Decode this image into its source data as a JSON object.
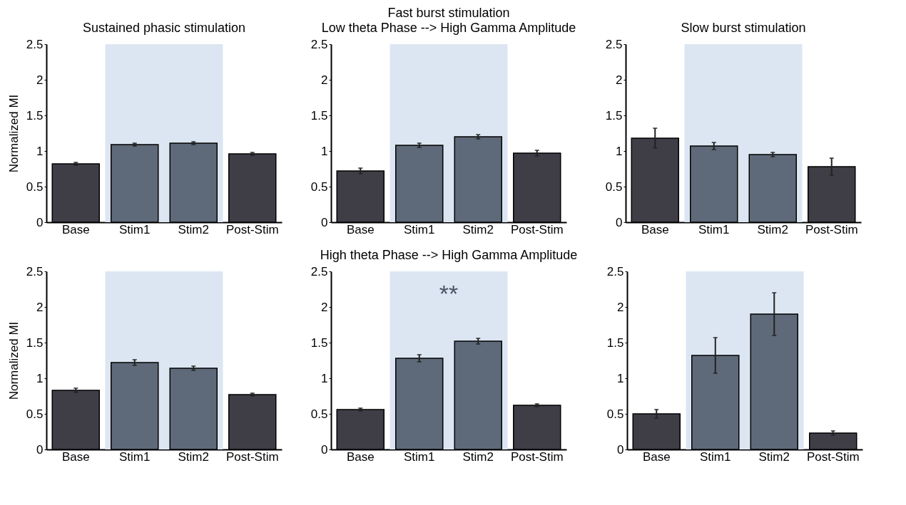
{
  "chart_data": [
    {
      "type": "bar",
      "title": "Sustained phasic stimulation",
      "ylabel": "Normalized MI",
      "categories": [
        "Base",
        "Stim1",
        "Stim2",
        "Post-Stim"
      ],
      "values": [
        0.82,
        1.09,
        1.11,
        0.96
      ],
      "errors": [
        0.02,
        0.02,
        0.02,
        0.02
      ],
      "colors": [
        "#3f3e47",
        "#5e6a79",
        "#5e6a79",
        "#3f3e47"
      ],
      "ylim": [
        0,
        2.5
      ],
      "yticks": [
        0,
        0.5,
        1,
        1.5,
        2,
        2.5
      ],
      "bands": [
        {
          "axis": "x",
          "from": "Stim1",
          "to": "Stim2",
          "color": "#dce6f2"
        }
      ],
      "grid": false
    },
    {
      "type": "bar",
      "title": "Fast burst stimulation",
      "subtitle": "Low theta Phase --> High Gamma Amplitude",
      "categories": [
        "Base",
        "Stim1",
        "Stim2",
        "Post-Stim"
      ],
      "values": [
        0.72,
        1.08,
        1.2,
        0.97
      ],
      "errors": [
        0.04,
        0.03,
        0.03,
        0.04
      ],
      "colors": [
        "#3f3e47",
        "#5e6a79",
        "#5e6a79",
        "#3f3e47"
      ],
      "ylim": [
        0,
        2.5
      ],
      "yticks": [
        0,
        0.5,
        1,
        1.5,
        2,
        2.5
      ],
      "bands": [
        {
          "axis": "x",
          "from": "Stim1",
          "to": "Stim2",
          "color": "#dce6f2"
        }
      ],
      "grid": false
    },
    {
      "type": "bar",
      "title": "Slow burst stimulation",
      "categories": [
        "Base",
        "Stim1",
        "Stim2",
        "Post-Stim"
      ],
      "values": [
        1.18,
        1.07,
        0.95,
        0.78
      ],
      "errors": [
        0.14,
        0.05,
        0.03,
        0.12
      ],
      "colors": [
        "#3f3e47",
        "#5e6a79",
        "#5e6a79",
        "#3f3e47"
      ],
      "ylim": [
        0,
        2.5
      ],
      "yticks": [
        0,
        0.5,
        1,
        1.5,
        2,
        2.5
      ],
      "bands": [
        {
          "axis": "x",
          "from": "Stim1",
          "to": "Stim2",
          "color": "#dce6f2"
        }
      ],
      "grid": false
    },
    {
      "type": "bar",
      "ylabel": "Normalized MI",
      "categories": [
        "Base",
        "Stim1",
        "Stim2",
        "Post-Stim"
      ],
      "values": [
        0.83,
        1.22,
        1.14,
        0.77
      ],
      "errors": [
        0.03,
        0.04,
        0.03,
        0.02
      ],
      "colors": [
        "#3f3e47",
        "#5e6a79",
        "#5e6a79",
        "#3f3e47"
      ],
      "ylim": [
        0,
        2.5
      ],
      "yticks": [
        0,
        0.5,
        1,
        1.5,
        2,
        2.5
      ],
      "bands": [
        {
          "axis": "x",
          "from": "Stim1",
          "to": "Stim2",
          "color": "#dce6f2"
        }
      ],
      "grid": false
    },
    {
      "type": "bar",
      "title": "High theta Phase --> High Gamma Amplitude",
      "categories": [
        "Base",
        "Stim1",
        "Stim2",
        "Post-Stim"
      ],
      "values": [
        0.56,
        1.28,
        1.52,
        0.62
      ],
      "errors": [
        0.02,
        0.05,
        0.04,
        0.02
      ],
      "colors": [
        "#3f3e47",
        "#5e6a79",
        "#5e6a79",
        "#3f3e47"
      ],
      "ylim": [
        0,
        2.5
      ],
      "yticks": [
        0,
        0.5,
        1,
        1.5,
        2,
        2.5
      ],
      "bands": [
        {
          "axis": "x",
          "from": "Stim1",
          "to": "Stim2",
          "color": "#dce6f2"
        }
      ],
      "annotations": [
        "**"
      ],
      "grid": false
    },
    {
      "type": "bar",
      "categories": [
        "Base",
        "Stim1",
        "Stim2",
        "Post-Stim"
      ],
      "values": [
        0.5,
        1.32,
        1.9,
        0.23
      ],
      "errors": [
        0.06,
        0.25,
        0.3,
        0.03
      ],
      "colors": [
        "#3f3e47",
        "#5e6a79",
        "#5e6a79",
        "#3f3e47"
      ],
      "ylim": [
        0,
        2.5
      ],
      "yticks": [
        0,
        0.5,
        1,
        1.5,
        2,
        2.5
      ],
      "bands": [
        {
          "axis": "x",
          "from": "Stim1",
          "to": "Stim2",
          "color": "#dce6f2"
        }
      ],
      "grid": false
    }
  ]
}
